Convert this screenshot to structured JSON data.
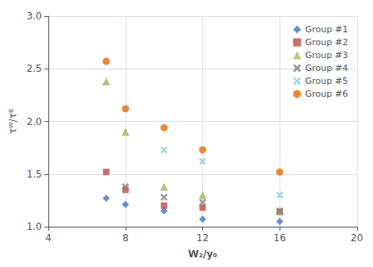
{
  "chart_data": {
    "type": "scatter",
    "xlabel": "W₂/y₀",
    "ylabel": "τᵂ/τᴮ",
    "xlim": [
      4,
      20
    ],
    "ylim": [
      1.0,
      3.0
    ],
    "xticks": [
      4,
      8,
      12,
      16,
      20
    ],
    "yticks": [
      {
        "value": 1.0,
        "label": "1.0"
      },
      1.5,
      {
        "value": 2.0,
        "label": "2.0"
      },
      2.5,
      {
        "value": 3.0,
        "label": "3.0"
      }
    ],
    "grid": true,
    "legend": "upper right",
    "series": [
      {
        "name": "Group #1",
        "color": "#4472C4",
        "marker": "diamond",
        "x": [
          7,
          8,
          10,
          12,
          16
        ],
        "values": [
          1.27,
          1.21,
          1.15,
          1.07,
          1.05
        ]
      },
      {
        "name": "Group #2",
        "color": "#BE4B48",
        "marker": "square",
        "x": [
          7,
          8,
          10,
          12,
          16
        ],
        "values": [
          1.52,
          1.35,
          1.2,
          1.18,
          1.14
        ]
      },
      {
        "name": "Group #3",
        "color": "#9BBB59",
        "marker": "triangle",
        "x": [
          7,
          8,
          10,
          12,
          16
        ],
        "values": [
          2.38,
          1.9,
          1.38,
          1.3,
          1.15
        ]
      },
      {
        "name": "Group #4",
        "color": "#808080",
        "marker": "x",
        "x": [
          8,
          10,
          12,
          16
        ],
        "values": [
          1.38,
          1.28,
          1.23,
          1.15
        ]
      },
      {
        "name": "Group #5",
        "color": "#92CDDC",
        "marker": "x",
        "x": [
          10,
          12,
          16
        ],
        "values": [
          1.73,
          1.62,
          1.3
        ]
      },
      {
        "name": "Group #6",
        "color": "#E46C0A",
        "marker": "circle",
        "x": [
          7,
          8,
          10,
          12,
          16
        ],
        "values": [
          2.57,
          2.12,
          1.94,
          1.73,
          1.52
        ]
      }
    ]
  }
}
